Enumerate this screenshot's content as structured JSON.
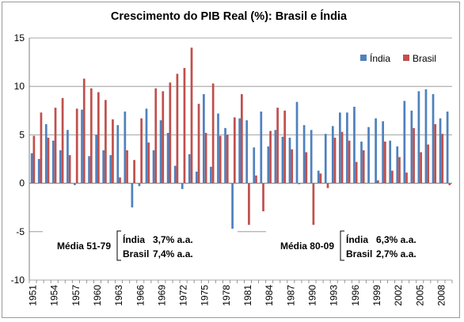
{
  "chart_data": {
    "type": "bar",
    "title": "Crescimento do PIB Real (%): Brasil e Índia",
    "xlabel": "",
    "ylabel": "",
    "ylim": [
      -10,
      15
    ],
    "yticks": [
      -10,
      -5,
      0,
      5,
      10,
      15
    ],
    "grid": true,
    "legend_position": "top-right",
    "categories": [
      "1951",
      "1952",
      "1953",
      "1954",
      "1955",
      "1956",
      "1957",
      "1958",
      "1959",
      "1960",
      "1961",
      "1962",
      "1963",
      "1964",
      "1965",
      "1966",
      "1967",
      "1968",
      "1969",
      "1970",
      "1971",
      "1972",
      "1973",
      "1974",
      "1975",
      "1976",
      "1977",
      "1978",
      "1979",
      "1980",
      "1981",
      "1982",
      "1983",
      "1984",
      "1985",
      "1986",
      "1987",
      "1988",
      "1989",
      "1990",
      "1991",
      "1992",
      "1993",
      "1994",
      "1995",
      "1996",
      "1997",
      "1998",
      "1999",
      "2000",
      "2001",
      "2002",
      "2003",
      "2004",
      "2005",
      "2006",
      "2007",
      "2008",
      "2009"
    ],
    "xtick_labels": [
      "1951",
      "1954",
      "1957",
      "1960",
      "1963",
      "1966",
      "1969",
      "1972",
      "1975",
      "1978",
      "1981",
      "1984",
      "1987",
      "1990",
      "1993",
      "1996",
      "1999",
      "2002",
      "2005",
      "2008"
    ],
    "series": [
      {
        "name": "Índia",
        "color": "#4f81bd",
        "values": [
          3.1,
          2.5,
          6.1,
          4.4,
          3.4,
          5.5,
          -0.2,
          7.6,
          2.8,
          5.0,
          3.4,
          2.9,
          6.0,
          7.4,
          -2.5,
          -0.3,
          7.7,
          3.4,
          6.5,
          5.2,
          1.8,
          -0.6,
          3.0,
          1.2,
          9.2,
          1.7,
          7.2,
          5.7,
          -5.2,
          6.7,
          6.5,
          3.7,
          7.4,
          3.8,
          5.5,
          4.8,
          4.7,
          8.4,
          6.0,
          5.5,
          1.3,
          5.1,
          5.9,
          7.3,
          7.3,
          7.9,
          4.3,
          5.8,
          6.7,
          6.4,
          4.4,
          3.8,
          8.5,
          7.5,
          9.5,
          9.7,
          9.2,
          6.7,
          7.4
        ]
      },
      {
        "name": "Brasil",
        "color": "#c0504d",
        "values": [
          4.9,
          7.3,
          4.7,
          7.8,
          8.8,
          2.9,
          7.7,
          10.8,
          9.8,
          9.4,
          8.6,
          6.6,
          0.6,
          3.4,
          2.4,
          6.7,
          4.2,
          9.8,
          9.5,
          10.4,
          11.3,
          11.9,
          14.0,
          8.2,
          5.2,
          10.3,
          4.9,
          5.0,
          6.8,
          9.2,
          -4.3,
          0.8,
          -2.9,
          5.4,
          7.8,
          7.5,
          3.5,
          -0.1,
          3.2,
          -4.3,
          1.0,
          -0.5,
          4.7,
          5.3,
          4.4,
          2.2,
          3.4,
          0.0,
          0.3,
          4.3,
          1.3,
          2.7,
          1.1,
          5.7,
          3.2,
          4.0,
          6.1,
          5.1,
          -0.2
        ]
      }
    ],
    "annotations": [
      {
        "label": "Média 51-79",
        "rows": [
          {
            "name": "Índia",
            "value": "3,7% a.a."
          },
          {
            "name": "Brasil",
            "value": "7,4% a.a."
          }
        ]
      },
      {
        "label": "Média 80-09",
        "rows": [
          {
            "name": "Índia",
            "value": "6,3% a.a."
          },
          {
            "name": "Brasil",
            "value": "2,7% a.a."
          }
        ]
      }
    ]
  }
}
